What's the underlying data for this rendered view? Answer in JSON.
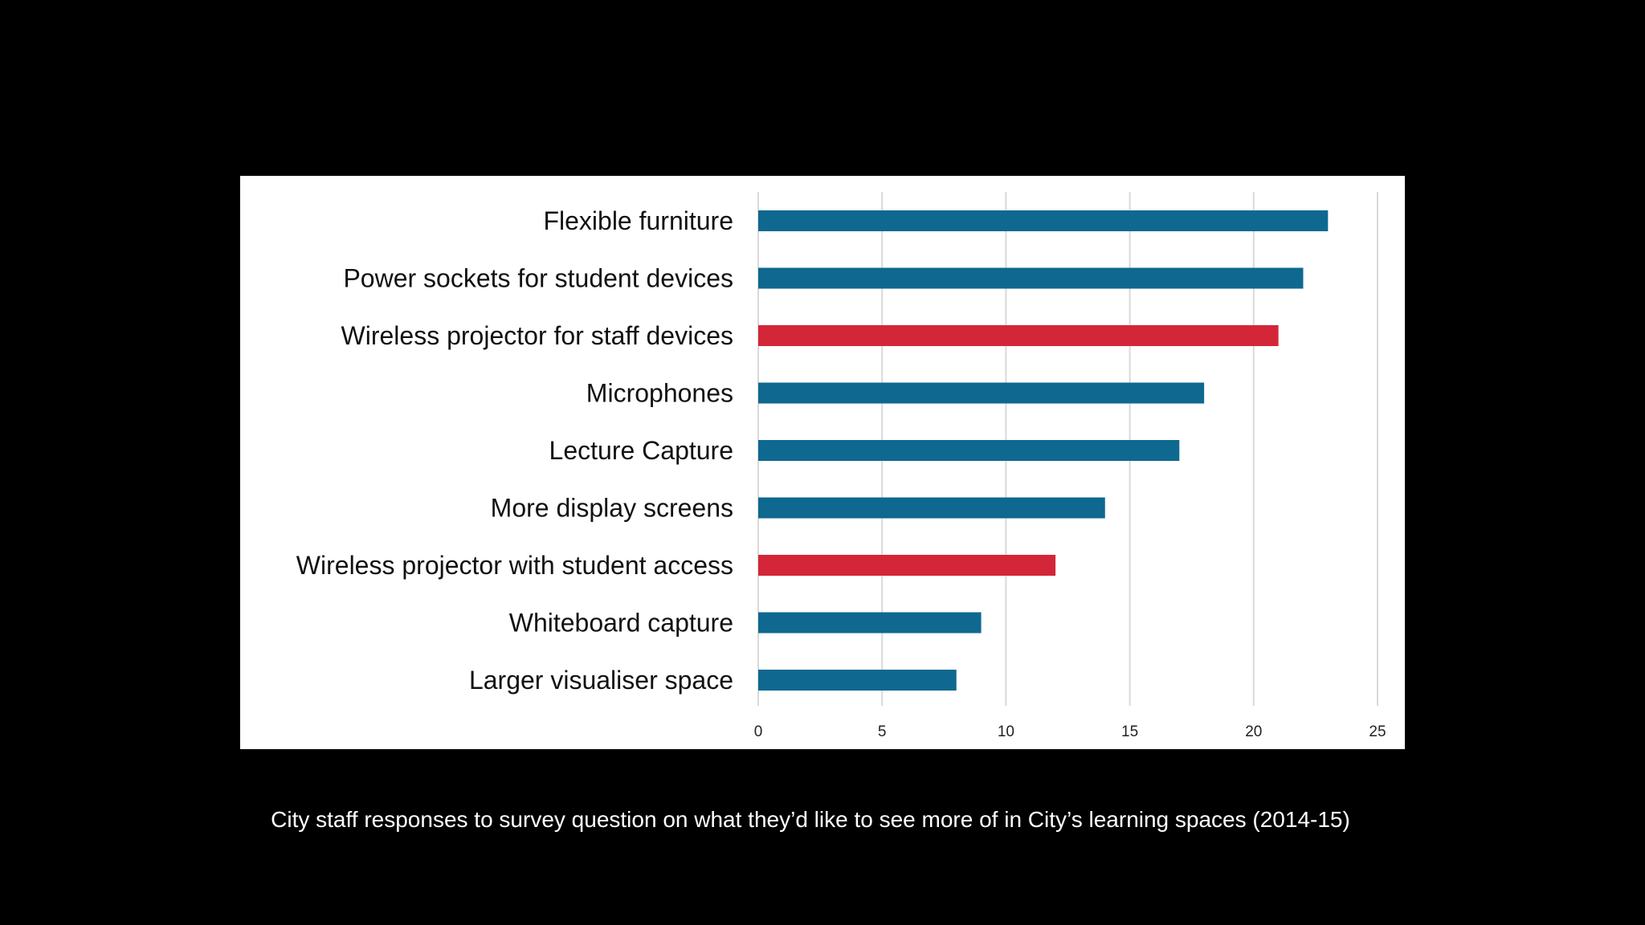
{
  "slide": {
    "caption": "City staff responses to survey question on what they’d like to see more of in City’s learning spaces (2014-15)"
  },
  "colors": {
    "background": "#000000",
    "panel": "#ffffff",
    "bar_blue": "#0e6890",
    "bar_red": "#d32638",
    "grid": "#d9d9d9",
    "text": "#111111"
  },
  "chart_data": {
    "type": "bar",
    "orientation": "horizontal",
    "title": "",
    "xlabel": "",
    "ylabel": "",
    "categories": [
      "Flexible furniture",
      "Power sockets for student devices",
      "Wireless projector for staff devices",
      "Microphones",
      "Lecture Capture",
      "More display screens",
      "Wireless projector with student access",
      "Whiteboard capture",
      "Larger visualiser space"
    ],
    "values": [
      23,
      22,
      21,
      18,
      17,
      14,
      12,
      9,
      8
    ],
    "bar_colors": [
      "#0e6890",
      "#0e6890",
      "#d32638",
      "#0e6890",
      "#0e6890",
      "#0e6890",
      "#d32638",
      "#0e6890",
      "#0e6890"
    ],
    "xlim": [
      0,
      25
    ],
    "xticks": [
      0,
      5,
      10,
      15,
      20,
      25
    ],
    "grid": true,
    "legend": "none"
  }
}
